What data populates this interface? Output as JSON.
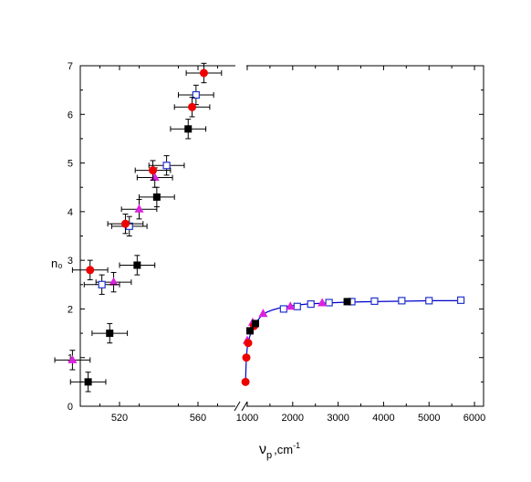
{
  "chart_data": {
    "type": "scatter",
    "ylabel": "n₀",
    "xlabel_main": "ν",
    "xlabel_sub": "p",
    "xlabel_unit": ",cm",
    "xlabel_sup": "-1",
    "ylim": [
      0,
      7
    ],
    "y_ticks": [
      "0",
      "1",
      "2",
      "3",
      "4",
      "5",
      "6",
      "7"
    ],
    "x_panels": [
      {
        "range": [
          500,
          580
        ],
        "ticks": [
          520,
          560
        ],
        "tick_labels": [
          "520",
          "560"
        ]
      },
      {
        "range": [
          940,
          6200
        ],
        "ticks": [
          1000,
          2000,
          3000,
          4000,
          5000,
          6000
        ],
        "tick_labels": [
          "1000",
          "2000",
          "3000",
          "4000",
          "5000",
          "6000"
        ]
      }
    ],
    "left_series": [
      {
        "marker": "square-filled",
        "color": "#000000",
        "points": [
          {
            "x": 504,
            "y": 0.5,
            "xerr": 9,
            "yerr": 0.2
          },
          {
            "x": 515,
            "y": 1.5,
            "xerr": 9,
            "yerr": 0.2
          },
          {
            "x": 529,
            "y": 2.9,
            "xerr": 9,
            "yerr": 0.2
          },
          {
            "x": 539,
            "y": 4.3,
            "xerr": 9,
            "yerr": 0.2
          },
          {
            "x": 555,
            "y": 5.7,
            "xerr": 9,
            "yerr": 0.2
          }
        ]
      },
      {
        "marker": "triangle",
        "color": "#dd22dd",
        "points": [
          {
            "x": 496,
            "y": 0.95,
            "xerr": 9,
            "yerr": 0.2
          },
          {
            "x": 517,
            "y": 2.55,
            "xerr": 9,
            "yerr": 0.2
          },
          {
            "x": 530,
            "y": 4.05,
            "xerr": 9,
            "yerr": 0.2
          },
          {
            "x": 538,
            "y": 4.7,
            "xerr": 9,
            "yerr": 0.2
          }
        ]
      },
      {
        "marker": "square-open",
        "color": "#2233cc",
        "points": [
          {
            "x": 511,
            "y": 2.5,
            "xerr": 9,
            "yerr": 0.2
          },
          {
            "x": 525,
            "y": 3.7,
            "xerr": 9,
            "yerr": 0.2
          },
          {
            "x": 544,
            "y": 4.95,
            "xerr": 9,
            "yerr": 0.2
          },
          {
            "x": 559,
            "y": 6.4,
            "xerr": 9,
            "yerr": 0.2
          }
        ]
      },
      {
        "marker": "circle",
        "color": "#ee0000",
        "points": [
          {
            "x": 505,
            "y": 2.8,
            "xerr": 9,
            "yerr": 0.2
          },
          {
            "x": 523,
            "y": 3.75,
            "xerr": 9,
            "yerr": 0.2
          },
          {
            "x": 537,
            "y": 4.85,
            "xerr": 9,
            "yerr": 0.2
          },
          {
            "x": 557,
            "y": 6.15,
            "xerr": 9,
            "yerr": 0.2
          },
          {
            "x": 563,
            "y": 6.85,
            "xerr": 9,
            "yerr": 0.2
          }
        ]
      }
    ],
    "right_curve": {
      "color": "#0000cc",
      "x": [
        962,
        980,
        1000,
        1030,
        1060,
        1100,
        1150,
        1220,
        1300,
        1420,
        1560,
        1750,
        2000,
        2300,
        2700,
        3200,
        3800,
        4500,
        5100,
        5700
      ],
      "y": [
        0.5,
        1.0,
        1.2,
        1.35,
        1.45,
        1.55,
        1.65,
        1.75,
        1.85,
        1.93,
        1.98,
        2.03,
        2.07,
        2.1,
        2.12,
        2.14,
        2.15,
        2.16,
        2.17,
        2.17
      ]
    },
    "right_series": [
      {
        "marker": "square-open",
        "color": "#2233cc",
        "x": [
          1800,
          2100,
          2400,
          2800,
          3300,
          3800,
          4400,
          5000,
          5700
        ],
        "y": [
          2.0,
          2.05,
          2.1,
          2.13,
          2.15,
          2.16,
          2.17,
          2.17,
          2.18
        ]
      },
      {
        "marker": "triangle",
        "color": "#dd22dd",
        "x": [
          1000,
          1120,
          1350,
          1950,
          2650
        ],
        "y": [
          1.35,
          1.72,
          1.9,
          2.05,
          2.12
        ]
      },
      {
        "marker": "circle",
        "color": "#ee0000",
        "x": [
          962,
          980,
          1020,
          1150
        ],
        "y": [
          0.5,
          1.0,
          1.3,
          1.65
        ]
      },
      {
        "marker": "square-filled",
        "color": "#000000",
        "x": [
          1060,
          1180,
          3200
        ],
        "y": [
          1.55,
          1.7,
          2.15
        ]
      }
    ]
  }
}
